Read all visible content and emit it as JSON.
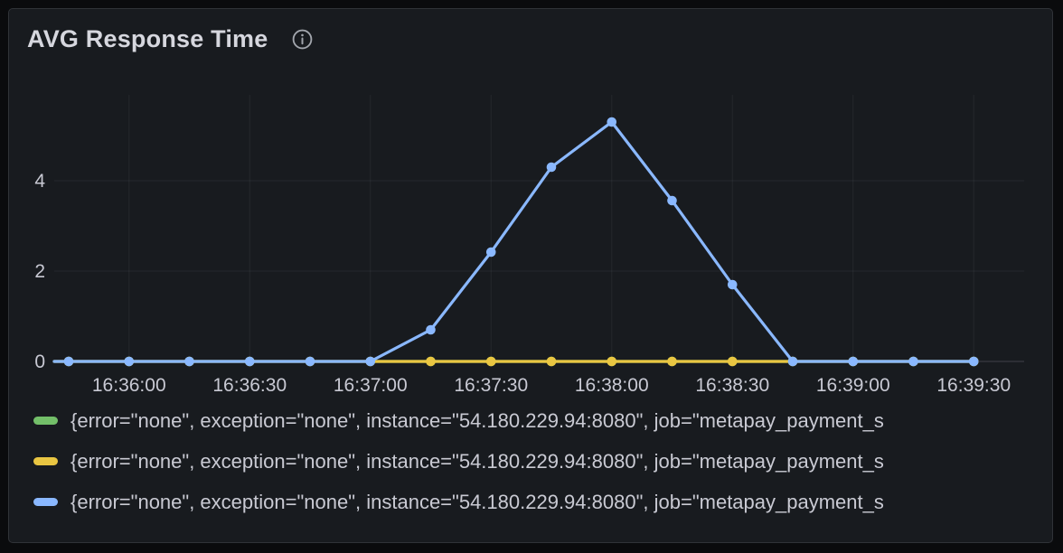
{
  "panel": {
    "title": "AVG Response Time"
  },
  "chart_data": {
    "type": "line",
    "title": "AVG Response Time",
    "xlabel": "",
    "ylabel": "",
    "x": [
      "16:35:45",
      "16:36:00",
      "16:36:15",
      "16:36:30",
      "16:36:45",
      "16:37:00",
      "16:37:15",
      "16:37:30",
      "16:37:45",
      "16:38:00",
      "16:38:15",
      "16:38:30",
      "16:38:45",
      "16:39:00",
      "16:39:15",
      "16:39:30"
    ],
    "x_tick_labels": [
      "16:36:00",
      "16:36:30",
      "16:37:00",
      "16:37:30",
      "16:38:00",
      "16:38:30",
      "16:39:00",
      "16:39:30"
    ],
    "y_ticks": [
      0,
      2,
      4
    ],
    "ylim": [
      0,
      5.9
    ],
    "grid": true,
    "legend_position": "bottom",
    "series": [
      {
        "name": "{error=\"none\", exception=\"none\", instance=\"54.180.229.94:8080\", job=\"metapay_payment_s",
        "color": "#73BF69",
        "values": [
          0,
          0,
          0,
          0,
          0,
          0,
          0,
          0,
          0,
          0,
          0,
          0,
          0,
          0,
          0,
          0
        ]
      },
      {
        "name": "{error=\"none\", exception=\"none\", instance=\"54.180.229.94:8080\", job=\"metapay_payment_s",
        "color": "#E9C642",
        "values": [
          0,
          0,
          0,
          0,
          0,
          0,
          0,
          0,
          0,
          0,
          0,
          0,
          0,
          0,
          0,
          0
        ]
      },
      {
        "name": "{error=\"none\", exception=\"none\", instance=\"54.180.229.94:8080\", job=\"metapay_payment_s",
        "color": "#8AB8FF",
        "values": [
          0,
          0,
          0,
          0,
          0,
          0,
          0.7,
          2.42,
          4.3,
          5.3,
          3.56,
          1.7,
          0,
          0,
          0,
          0
        ]
      }
    ],
    "colors": {
      "background": "#181b1f",
      "grid": "rgba(204,204,220,0.07)",
      "axis_line": "rgba(204,204,220,0.22)",
      "tick_text": "#c8c9d3"
    }
  }
}
